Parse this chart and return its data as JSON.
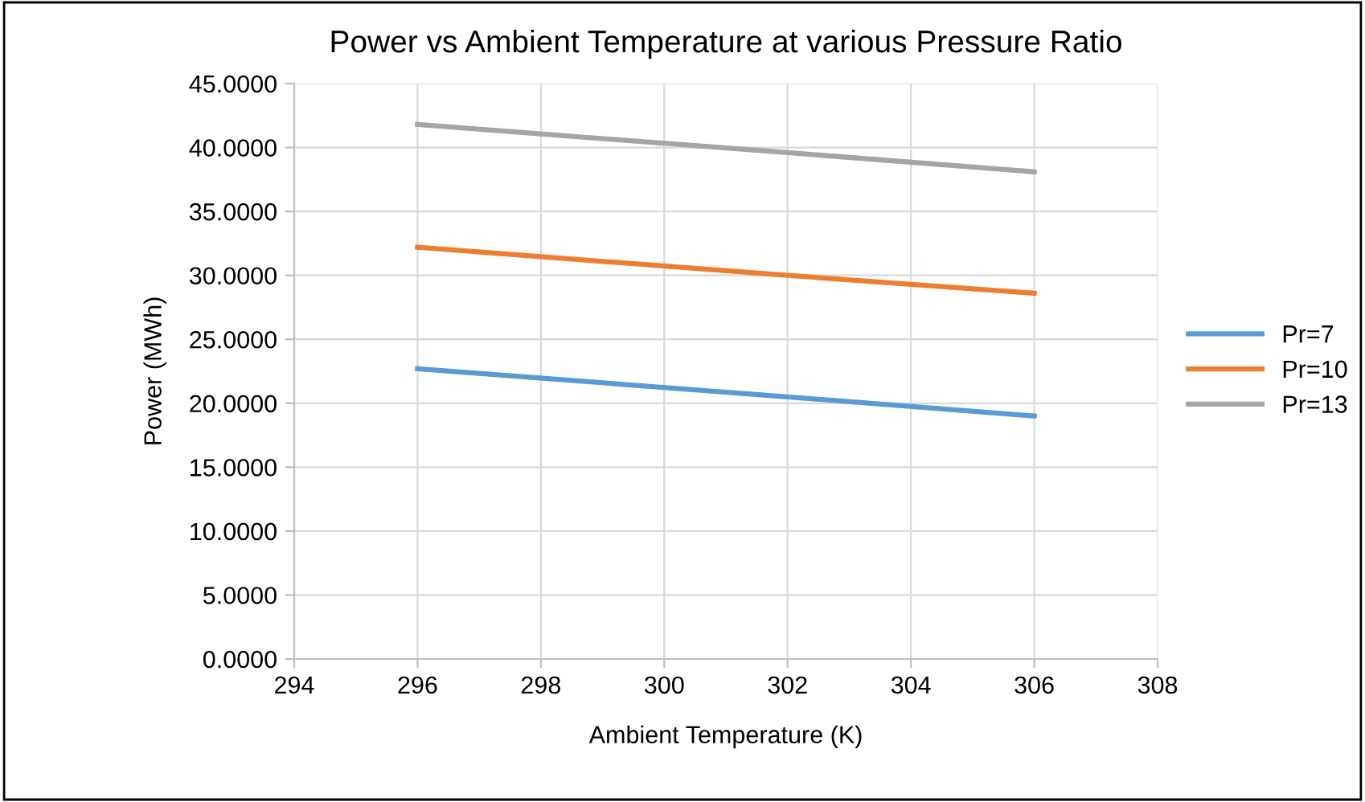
{
  "chart_data": {
    "type": "line",
    "title": "Power vs Ambient Temperature at various Pressure Ratio",
    "xlabel": "Ambient Temperature (K)",
    "ylabel": "Power (MWh)",
    "x": [
      296,
      302,
      306
    ],
    "series": [
      {
        "name": "Pr=7",
        "color": "#5b9bd5",
        "values": [
          22.7,
          20.5,
          19.0
        ]
      },
      {
        "name": "Pr=10",
        "color": "#ed7d31",
        "values": [
          32.2,
          30.0,
          28.6
        ]
      },
      {
        "name": "Pr=13",
        "color": "#a5a5a5",
        "values": [
          41.8,
          39.6,
          38.1
        ]
      }
    ],
    "xlim": [
      294,
      308
    ],
    "xticks": [
      294,
      296,
      298,
      300,
      302,
      304,
      306,
      308
    ],
    "ylim": [
      0,
      45
    ],
    "yticks": [
      {
        "value": 0,
        "label": "0.0000"
      },
      {
        "value": 5,
        "label": "5.0000"
      },
      {
        "value": 10,
        "label": "10.0000"
      },
      {
        "value": 15,
        "label": "15.0000"
      },
      {
        "value": 20,
        "label": "20.0000"
      },
      {
        "value": 25,
        "label": "25.0000"
      },
      {
        "value": 30,
        "label": "30.0000"
      },
      {
        "value": 35,
        "label": "35.0000"
      },
      {
        "value": 40,
        "label": "40.0000"
      },
      {
        "value": 45,
        "label": "45.0000"
      }
    ],
    "grid": true,
    "legend": "right",
    "marker": "none",
    "line_style": "solid"
  }
}
